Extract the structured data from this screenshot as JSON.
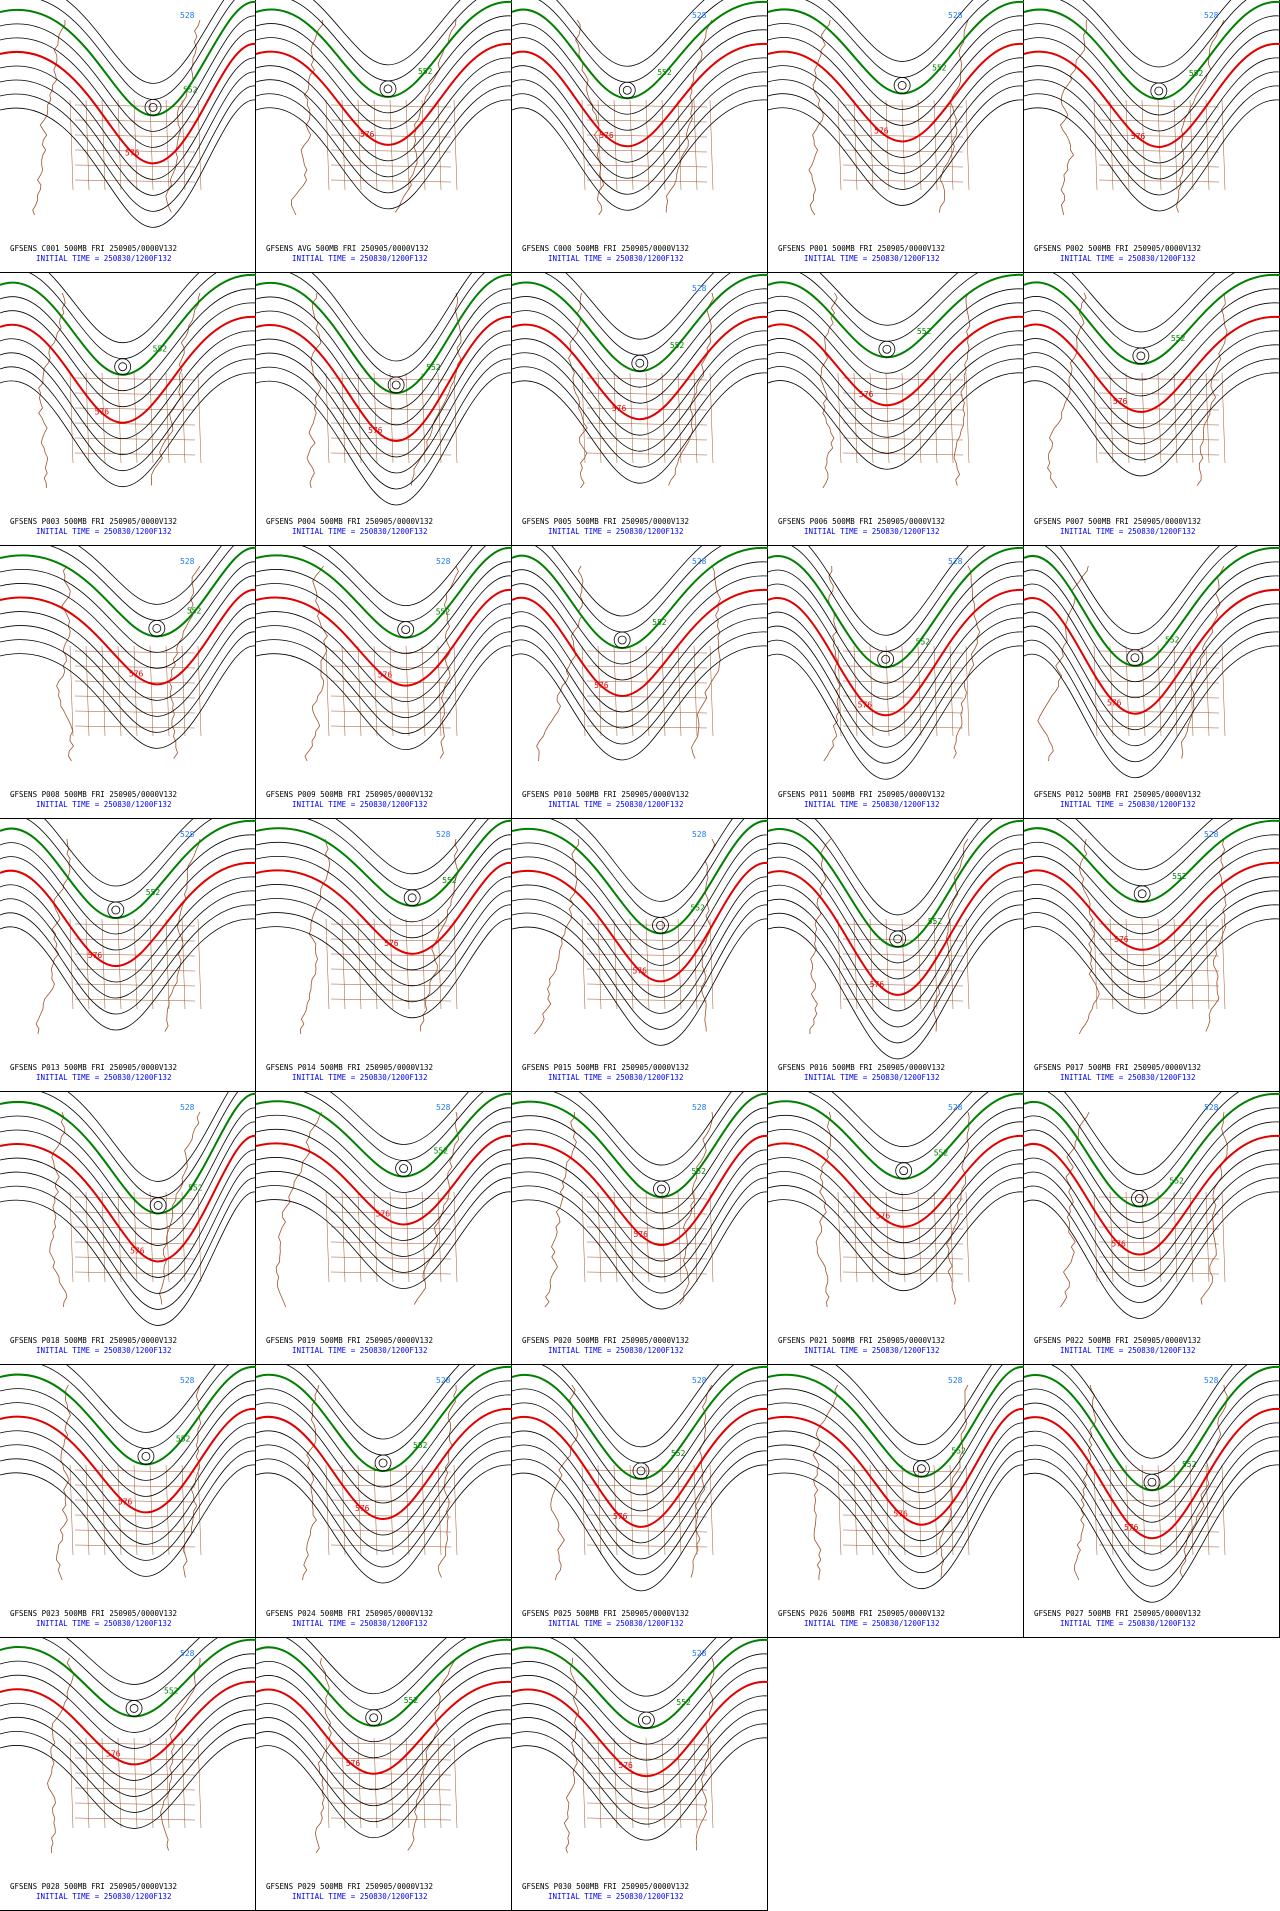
{
  "panels": [
    {
      "title": "GFSENS C001 500MB FRI 250905/0000V132",
      "subtitle": "INITIAL TIME = 250830/1200F132",
      "labels": [
        "576",
        "552",
        "528"
      ]
    },
    {
      "title": "GFSENS AVG 500MB FRI 250905/0000V132",
      "subtitle": "INITIAL TIME = 250830/1200F132",
      "labels": [
        "576",
        "552"
      ]
    },
    {
      "title": "GFSENS C000 500MB FRI 250905/0000V132",
      "subtitle": "INITIAL TIME = 250830/1200F132",
      "labels": [
        "576",
        "552",
        "528"
      ]
    },
    {
      "title": "GFSENS P001 500MB FRI 250905/0000V132",
      "subtitle": "INITIAL TIME = 250830/1200F132",
      "labels": [
        "576",
        "552",
        "528"
      ]
    },
    {
      "title": "GFSENS P002 500MB FRI 250905/0000V132",
      "subtitle": "INITIAL TIME = 250830/1200F132",
      "labels": [
        "576",
        "552",
        "528"
      ]
    },
    {
      "title": "GFSENS P003 500MB FRI 250905/0000V132",
      "subtitle": "INITIAL TIME = 250830/1200F132",
      "labels": [
        "576",
        "552"
      ]
    },
    {
      "title": "GFSENS P004 500MB FRI 250905/0000V132",
      "subtitle": "INITIAL TIME = 250830/1200F132",
      "labels": [
        "576",
        "552"
      ]
    },
    {
      "title": "GFSENS P005 500MB FRI 250905/0000V132",
      "subtitle": "INITIAL TIME = 250830/1200F132",
      "labels": [
        "576",
        "552",
        "528"
      ]
    },
    {
      "title": "GFSENS P006 500MB FRI 250905/0000V132",
      "subtitle": "INITIAL TIME = 250830/1200F132",
      "labels": [
        "576",
        "552"
      ]
    },
    {
      "title": "GFSENS P007 500MB FRI 250905/0000V132",
      "subtitle": "INITIAL TIME = 250830/1200F132",
      "labels": [
        "576",
        "552"
      ]
    },
    {
      "title": "GFSENS P008 500MB FRI 250905/0000V132",
      "subtitle": "INITIAL TIME = 250830/1200F132",
      "labels": [
        "576",
        "552",
        "528"
      ]
    },
    {
      "title": "GFSENS P009 500MB FRI 250905/0000V132",
      "subtitle": "INITIAL TIME = 250830/1200F132",
      "labels": [
        "576",
        "552",
        "528"
      ]
    },
    {
      "title": "GFSENS P010 500MB FRI 250905/0000V132",
      "subtitle": "INITIAL TIME = 250830/1200F132",
      "labels": [
        "576",
        "552",
        "528"
      ]
    },
    {
      "title": "GFSENS P011 500MB FRI 250905/0000V132",
      "subtitle": "INITIAL TIME = 250830/1200F132",
      "labels": [
        "576",
        "552",
        "528"
      ]
    },
    {
      "title": "GFSENS P012 500MB FRI 250905/0000V132",
      "subtitle": "INITIAL TIME = 250830/1200F132",
      "labels": [
        "576",
        "552"
      ]
    },
    {
      "title": "GFSENS P013 500MB FRI 250905/0000V132",
      "subtitle": "INITIAL TIME = 250830/1200F132",
      "labels": [
        "576",
        "552",
        "528"
      ]
    },
    {
      "title": "GFSENS P014 500MB FRI 250905/0000V132",
      "subtitle": "INITIAL TIME = 250830/1200F132",
      "labels": [
        "576",
        "552",
        "528"
      ]
    },
    {
      "title": "GFSENS P015 500MB FRI 250905/0000V132",
      "subtitle": "INITIAL TIME = 250830/1200F132",
      "labels": [
        "576",
        "552",
        "528"
      ]
    },
    {
      "title": "GFSENS P016 500MB FRI 250905/0000V132",
      "subtitle": "INITIAL TIME = 250830/1200F132",
      "labels": [
        "576",
        "552"
      ]
    },
    {
      "title": "GFSENS P017 500MB FRI 250905/0000V132",
      "subtitle": "INITIAL TIME = 250830/1200F132",
      "labels": [
        "576",
        "552",
        "528"
      ]
    },
    {
      "title": "GFSENS P018 500MB FRI 250905/0000V132",
      "subtitle": "INITIAL TIME = 250830/1200F132",
      "labels": [
        "576",
        "552",
        "528"
      ]
    },
    {
      "title": "GFSENS P019 500MB FRI 250905/0000V132",
      "subtitle": "INITIAL TIME = 250830/1200F132",
      "labels": [
        "576",
        "552",
        "528"
      ]
    },
    {
      "title": "GFSENS P020 500MB FRI 250905/0000V132",
      "subtitle": "INITIAL TIME = 250830/1200F132",
      "labels": [
        "576",
        "552",
        "528"
      ]
    },
    {
      "title": "GFSENS P021 500MB FRI 250905/0000V132",
      "subtitle": "INITIAL TIME = 250830/1200F132",
      "labels": [
        "576",
        "552",
        "528"
      ]
    },
    {
      "title": "GFSENS P022 500MB FRI 250905/0000V132",
      "subtitle": "INITIAL TIME = 250830/1200F132",
      "labels": [
        "576",
        "552",
        "528"
      ]
    },
    {
      "title": "GFSENS P023 500MB FRI 250905/0000V132",
      "subtitle": "INITIAL TIME = 250830/1200F132",
      "labels": [
        "576",
        "552",
        "528"
      ]
    },
    {
      "title": "GFSENS P024 500MB FRI 250905/0000V132",
      "subtitle": "INITIAL TIME = 250830/1200F132",
      "labels": [
        "576",
        "552",
        "528"
      ]
    },
    {
      "title": "GFSENS P025 500MB FRI 250905/0000V132",
      "subtitle": "INITIAL TIME = 250830/1200F132",
      "labels": [
        "576",
        "552",
        "528"
      ]
    },
    {
      "title": "GFSENS P026 500MB FRI 250905/0000V132",
      "subtitle": "INITIAL TIME = 250830/1200F132",
      "labels": [
        "576",
        "552",
        "528"
      ]
    },
    {
      "title": "GFSENS P027 500MB FRI 250905/0000V132",
      "subtitle": "INITIAL TIME = 250830/1200F132",
      "labels": [
        "576",
        "552",
        "528"
      ]
    },
    {
      "title": "GFSENS P028 500MB FRI 250905/0000V132",
      "subtitle": "INITIAL TIME = 250830/1200F132",
      "labels": [
        "576",
        "552",
        "528"
      ]
    },
    {
      "title": "GFSENS P029 500MB FRI 250905/0000V132",
      "subtitle": "INITIAL TIME = 250830/1200F132",
      "labels": [
        "576",
        "552"
      ]
    },
    {
      "title": "GFSENS P030 500MB FRI 250905/0000V132",
      "subtitle": "INITIAL TIME = 250830/1200F132",
      "labels": [
        "576",
        "552",
        "528"
      ]
    }
  ]
}
